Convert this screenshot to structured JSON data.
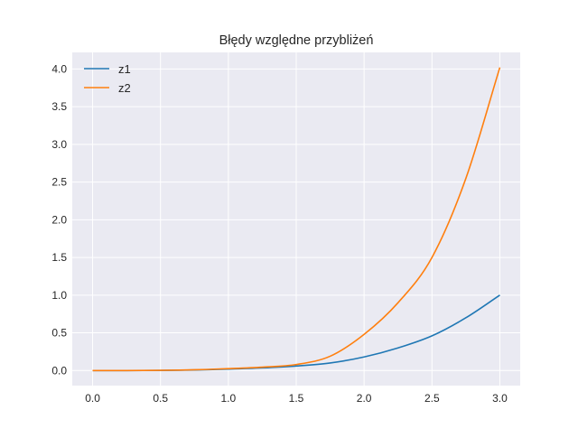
{
  "chart_data": {
    "type": "line",
    "title": "Błędy względne przybliżeń",
    "xlabel": "",
    "ylabel": "",
    "xlim": [
      -0.15,
      3.15
    ],
    "ylim": [
      -0.2,
      4.22
    ],
    "xticks": [
      0.0,
      0.5,
      1.0,
      1.5,
      2.0,
      2.5,
      3.0
    ],
    "xtick_labels": [
      "0.0",
      "0.5",
      "1.0",
      "1.5",
      "2.0",
      "2.5",
      "3.0"
    ],
    "yticks": [
      0.0,
      0.5,
      1.0,
      1.5,
      2.0,
      2.5,
      3.0,
      3.5,
      4.0
    ],
    "ytick_labels": [
      "0.0",
      "0.5",
      "1.0",
      "1.5",
      "2.0",
      "2.5",
      "3.0",
      "3.5",
      "4.0"
    ],
    "grid": true,
    "legend_position": "top-left",
    "x": [
      0.0,
      0.25,
      0.5,
      0.75,
      1.0,
      1.25,
      1.5,
      1.75,
      2.0,
      2.25,
      2.5,
      2.75,
      3.0
    ],
    "series": [
      {
        "name": "z1",
        "color": "#1f77b4",
        "values": [
          0.0,
          0.0001,
          0.002,
          0.008,
          0.019,
          0.035,
          0.06,
          0.1,
          0.18,
          0.3,
          0.46,
          0.7,
          1.0
        ]
      },
      {
        "name": "z2",
        "color": "#ff7f0e",
        "values": [
          0.0,
          0.0002,
          0.003,
          0.01,
          0.025,
          0.045,
          0.08,
          0.19,
          0.48,
          0.9,
          1.5,
          2.55,
          4.02
        ]
      }
    ]
  }
}
